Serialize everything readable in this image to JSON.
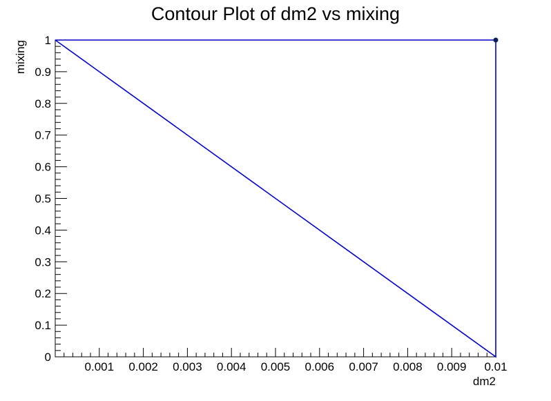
{
  "chart_data": {
    "type": "line",
    "title": "Contour Plot of dm2 vs mixing",
    "xlabel": "dm2",
    "ylabel": "mixing",
    "xlim": [
      0,
      0.01
    ],
    "ylim": [
      0,
      1
    ],
    "x_ticks": [
      0.001,
      0.002,
      0.003,
      0.004,
      0.005,
      0.006,
      0.007,
      0.008,
      0.009,
      0.01
    ],
    "x_tick_labels": [
      "0.001",
      "0.002",
      "0.003",
      "0.004",
      "0.005",
      "0.006",
      "0.007",
      "0.008",
      "0.009",
      "0.01"
    ],
    "y_ticks": [
      0,
      0.1,
      0.2,
      0.3,
      0.4,
      0.5,
      0.6,
      0.7,
      0.8,
      0.9,
      1
    ],
    "y_tick_labels": [
      "0",
      "0.1",
      "0.2",
      "0.3",
      "0.4",
      "0.5",
      "0.6",
      "0.7",
      "0.8",
      "0.9",
      "1"
    ],
    "grid": false,
    "line_color": "#0000cc",
    "series": [
      {
        "x": [
          0,
          0.01,
          0.01,
          0,
          0
        ],
        "y": [
          1,
          0,
          1,
          1,
          1
        ]
      }
    ],
    "markers": [
      {
        "x": 0.01,
        "y": 1
      }
    ]
  }
}
